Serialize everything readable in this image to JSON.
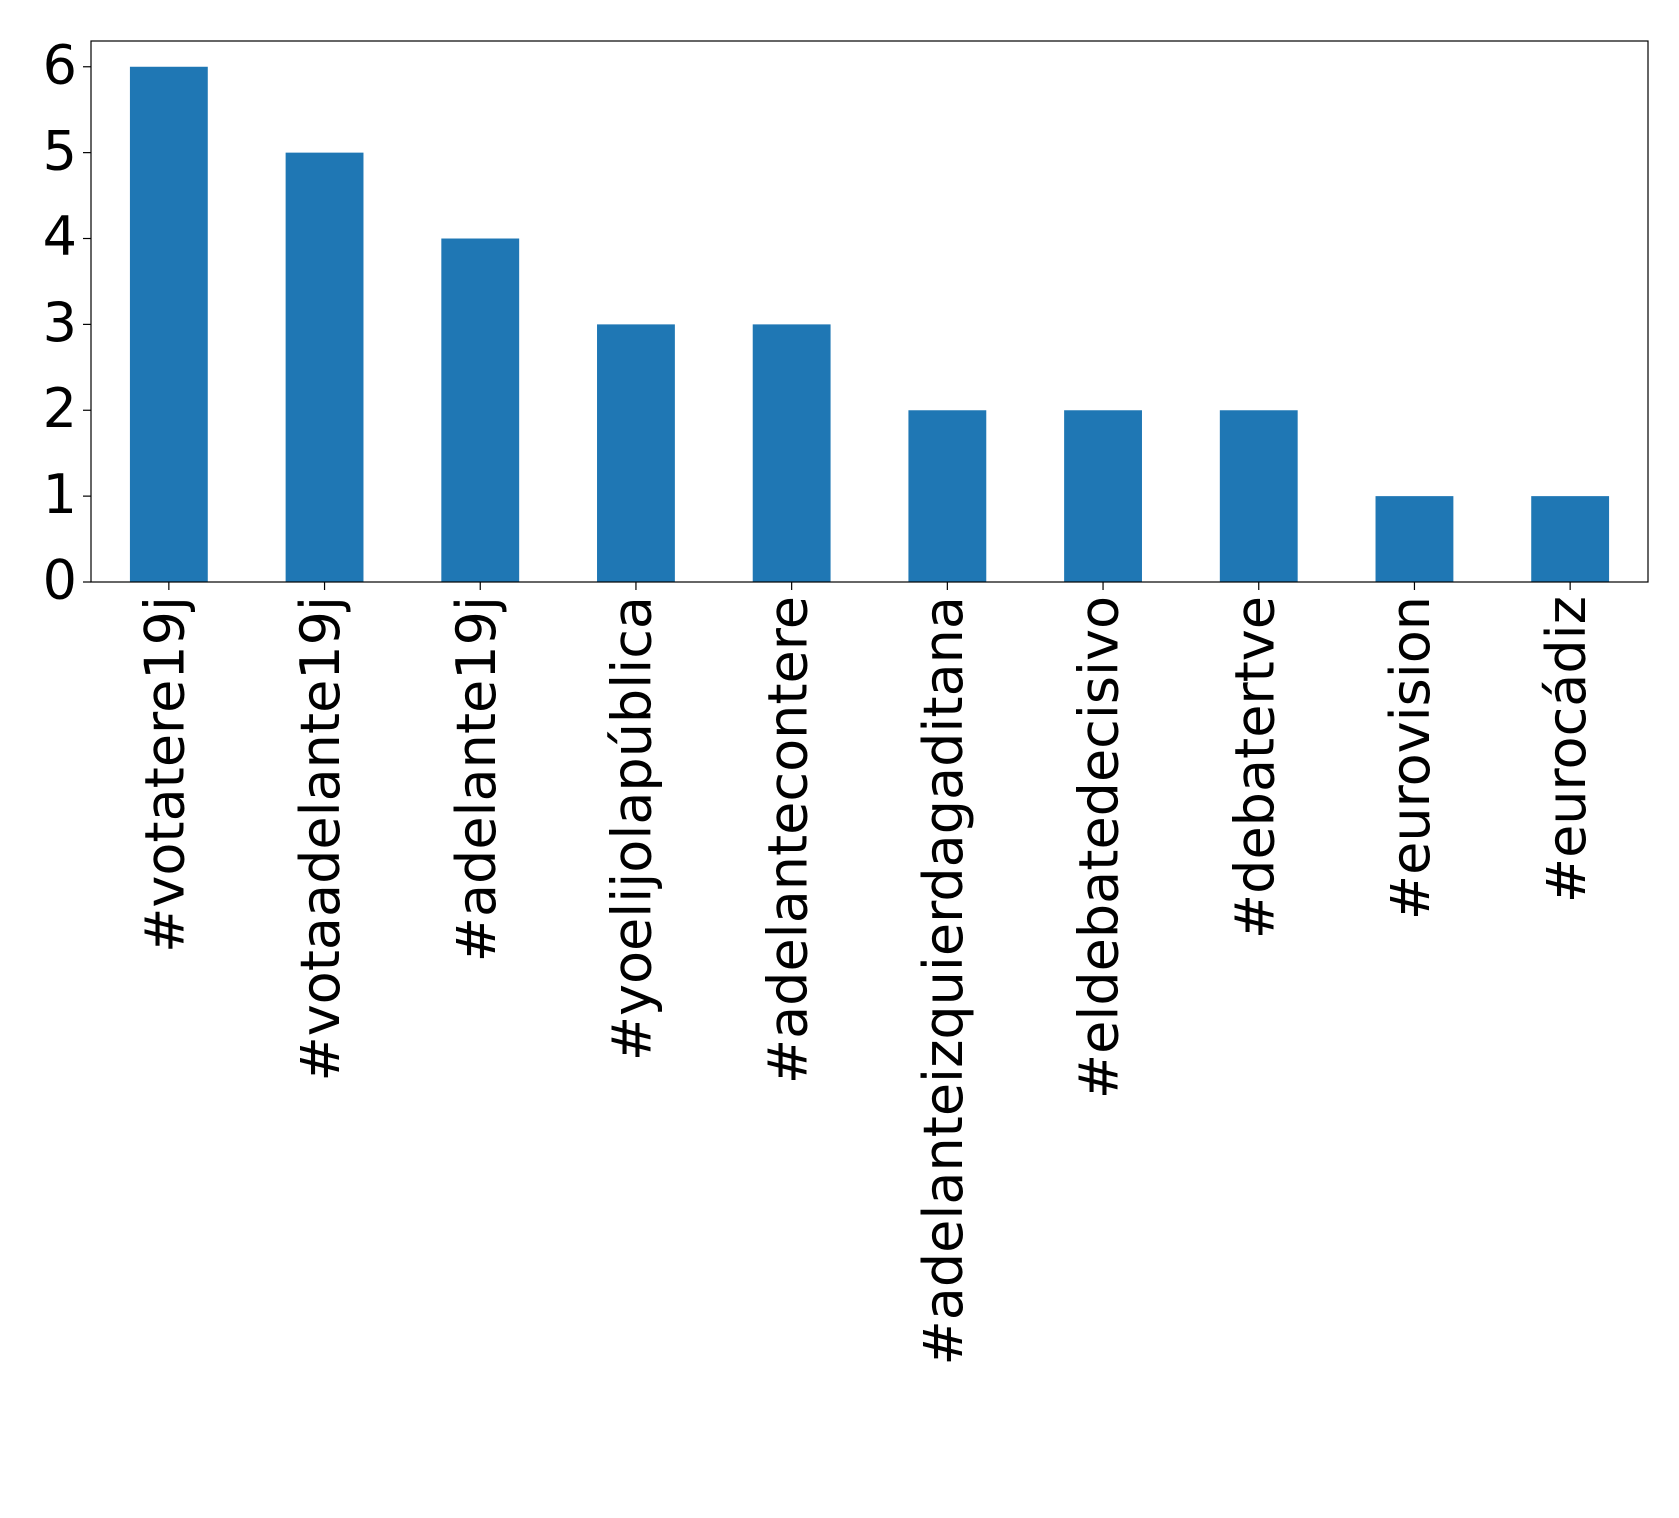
{
  "chart_data": {
    "type": "bar",
    "categories": [
      "#votatere19j",
      "#votaadelante19j",
      "#adelante19j",
      "#yoelijolapública",
      "#adelantecontere",
      "#adelanteizquierdagaditana",
      "#eldebatedecisivo",
      "#debatertve",
      "#eurovision",
      "#eurocádiz"
    ],
    "values": [
      6,
      5,
      4,
      3,
      3,
      2,
      2,
      2,
      1,
      1
    ],
    "color": "#1f77b4",
    "ylim": [
      0,
      6.3
    ],
    "yticks": [
      0,
      1,
      2,
      3,
      4,
      5,
      6
    ],
    "grid": false
  }
}
